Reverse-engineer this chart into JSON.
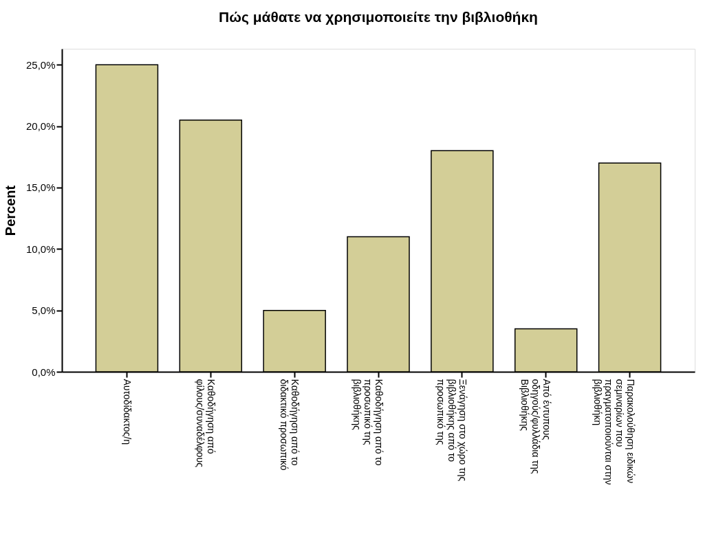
{
  "chart_data": {
    "type": "bar",
    "title": "Πώς μάθατε να χρησιμοποιείτε την βιβλιοθήκη",
    "ylabel": "Percent",
    "categories": [
      "Αυτοδίδακτος/η",
      "Καθοδήγηση από\nφίλους/συναδέλφους",
      "Καθοδήγηση από το\nδιδακτικό προσωπικό",
      "Καθοδήγηση από το\nπροσωπικό της\nβιβλιοθήκης",
      "Ξενάγηση στο χώρο της\nβιβλιοθήκης από το\nπροσωπικό της",
      "Από έντυπους\nοδηγούς/φυλλάδια της\nΒιβλιοθήκης",
      "Παρακολούθηση ειδικών\nσεμιναρίων που\nπραγματοποιούνται στην\nβιβλιοθήκη"
    ],
    "values": [
      25.0,
      20.5,
      5.0,
      11.0,
      18.0,
      3.5,
      17.0
    ],
    "color": "#d3ce97",
    "ylim": [
      0,
      26.3
    ],
    "yticks": [
      {
        "value": 0,
        "label": "0,0%"
      },
      {
        "value": 5,
        "label": "5,0%"
      },
      {
        "value": 10,
        "label": "10,0%"
      },
      {
        "value": 15,
        "label": "15,0%"
      },
      {
        "value": 20,
        "label": "20,0%"
      },
      {
        "value": 25,
        "label": "25,0%"
      }
    ],
    "grid": false
  }
}
